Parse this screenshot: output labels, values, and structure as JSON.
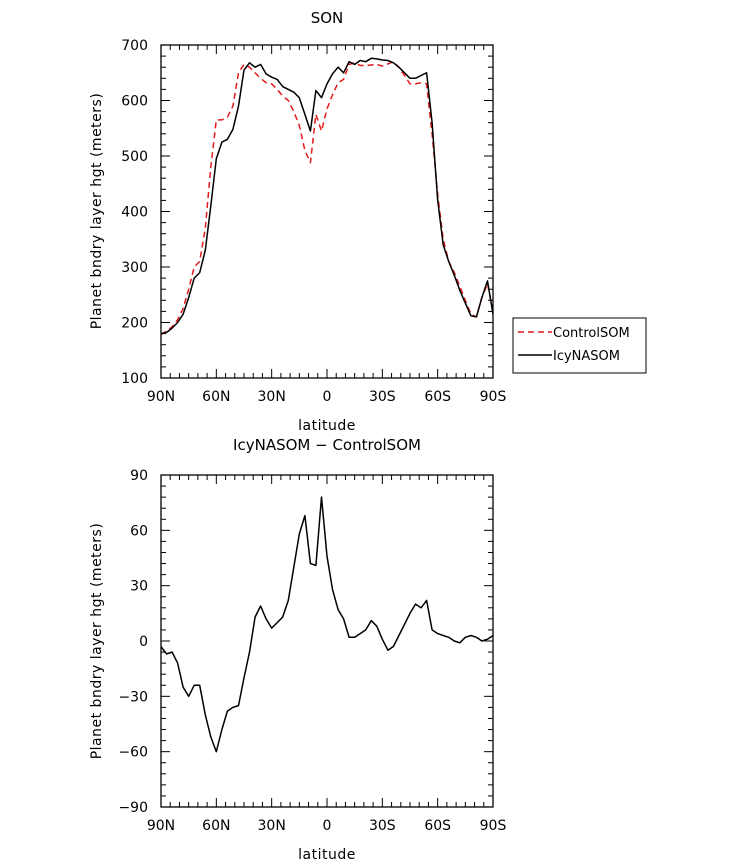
{
  "chart_data": [
    {
      "type": "line",
      "title": "SON",
      "xlabel": "latitude",
      "ylabel": "Planet bndry layer hgt (meters)",
      "xlim": [
        -90,
        90
      ],
      "ylim": [
        100,
        700
      ],
      "x_ticks": [
        -90,
        -60,
        -30,
        0,
        30,
        60,
        90
      ],
      "x_tick_labels": [
        "90N",
        "60N",
        "30N",
        "0",
        "30S",
        "60S",
        "90S"
      ],
      "y_ticks": [
        100,
        200,
        300,
        400,
        500,
        600,
        700
      ],
      "y_tick_labels": [
        "100",
        "200",
        "300",
        "400",
        "500",
        "600",
        "700"
      ],
      "grid": false,
      "legend": {
        "placement": "right",
        "entries": [
          "ControlSOM",
          "IcyNASOM"
        ]
      },
      "series": [
        {
          "name": "ControlSOM",
          "color": "#e41a1c",
          "dash": "dashed",
          "x": [
            -90,
            -87,
            -84,
            -81,
            -78,
            -75,
            -72,
            -69,
            -66,
            -63,
            -60,
            -57,
            -54,
            -51,
            -48,
            -45,
            -42,
            -39,
            -36,
            -33,
            -30,
            -27,
            -24,
            -21,
            -18,
            -15,
            -12,
            -9,
            -6,
            -3,
            0,
            3,
            6,
            9,
            12,
            15,
            18,
            21,
            24,
            27,
            30,
            33,
            36,
            39,
            42,
            45,
            48,
            51,
            54,
            57,
            60,
            63,
            66,
            69,
            72,
            75,
            78,
            81,
            84,
            87,
            90
          ],
          "values": [
            178,
            185,
            192,
            205,
            225,
            260,
            300,
            310,
            370,
            480,
            565,
            565,
            570,
            590,
            650,
            665,
            660,
            650,
            640,
            632,
            630,
            620,
            608,
            600,
            580,
            555,
            510,
            488,
            575,
            545,
            585,
            610,
            632,
            638,
            665,
            668,
            663,
            663,
            664,
            665,
            662,
            666,
            670,
            660,
            645,
            630,
            630,
            632,
            630,
            540,
            430,
            350,
            310,
            290,
            265,
            240,
            215,
            210,
            245,
            270,
            220
          ]
        },
        {
          "name": "IcyNASOM",
          "color": "#000000",
          "dash": "solid",
          "x": [
            -90,
            -87,
            -84,
            -81,
            -78,
            -75,
            -72,
            -69,
            -66,
            -63,
            -60,
            -57,
            -54,
            -51,
            -48,
            -45,
            -42,
            -39,
            -36,
            -33,
            -30,
            -27,
            -24,
            -21,
            -18,
            -15,
            -12,
            -9,
            -6,
            -3,
            0,
            3,
            6,
            9,
            12,
            15,
            18,
            21,
            24,
            27,
            30,
            33,
            36,
            39,
            42,
            45,
            48,
            51,
            54,
            57,
            60,
            63,
            66,
            69,
            72,
            75,
            78,
            81,
            84,
            87,
            90
          ],
          "values": [
            180,
            182,
            190,
            200,
            215,
            245,
            280,
            290,
            330,
            410,
            495,
            525,
            530,
            548,
            590,
            655,
            668,
            660,
            665,
            648,
            642,
            638,
            625,
            620,
            615,
            605,
            575,
            545,
            618,
            605,
            630,
            648,
            660,
            650,
            670,
            665,
            672,
            670,
            676,
            675,
            673,
            672,
            668,
            660,
            650,
            640,
            640,
            645,
            650,
            560,
            420,
            340,
            310,
            285,
            258,
            235,
            212,
            210,
            245,
            275,
            215
          ]
        }
      ]
    },
    {
      "type": "line",
      "title": "IcyNASOM − ControlSOM",
      "xlabel": "latitude",
      "ylabel": "Planet bndry layer hgt (meters)",
      "xlim": [
        -90,
        90
      ],
      "ylim": [
        -90,
        90
      ],
      "x_ticks": [
        -90,
        -60,
        -30,
        0,
        30,
        60,
        90
      ],
      "x_tick_labels": [
        "90N",
        "60N",
        "30N",
        "0",
        "30S",
        "60S",
        "90S"
      ],
      "y_ticks": [
        -90,
        -60,
        -30,
        0,
        30,
        60,
        90
      ],
      "y_tick_labels": [
        "−90",
        "−60",
        "−30",
        "0",
        "30",
        "60",
        "90"
      ],
      "grid": false,
      "series": [
        {
          "color": "#000000",
          "dash": "solid",
          "x": [
            -90,
            -87,
            -84,
            -81,
            -78,
            -75,
            -72,
            -69,
            -66,
            -63,
            -60,
            -57,
            -54,
            -51,
            -48,
            -45,
            -42,
            -39,
            -36,
            -33,
            -30,
            -27,
            -24,
            -21,
            -18,
            -15,
            -12,
            -9,
            -6,
            -3,
            0,
            3,
            6,
            9,
            12,
            15,
            18,
            21,
            24,
            27,
            30,
            33,
            36,
            39,
            42,
            45,
            48,
            51,
            54,
            57,
            60,
            63,
            66,
            69,
            72,
            75,
            78,
            81,
            84,
            87,
            90
          ],
          "values": [
            -3,
            -7,
            -6,
            -12,
            -25,
            -30,
            -24,
            -24,
            -40,
            -52,
            -60,
            -48,
            -38,
            -36,
            -35,
            -20,
            -6,
            13,
            19,
            12,
            7,
            10,
            13,
            22,
            40,
            58,
            68,
            42,
            41,
            78,
            46,
            28,
            17,
            12,
            2,
            2,
            4,
            6,
            11,
            8,
            1,
            -5,
            -3,
            3,
            9,
            15,
            20,
            18,
            22,
            6,
            4,
            3,
            2,
            0,
            -1,
            2,
            3,
            2,
            0,
            1,
            3
          ]
        }
      ]
    }
  ]
}
